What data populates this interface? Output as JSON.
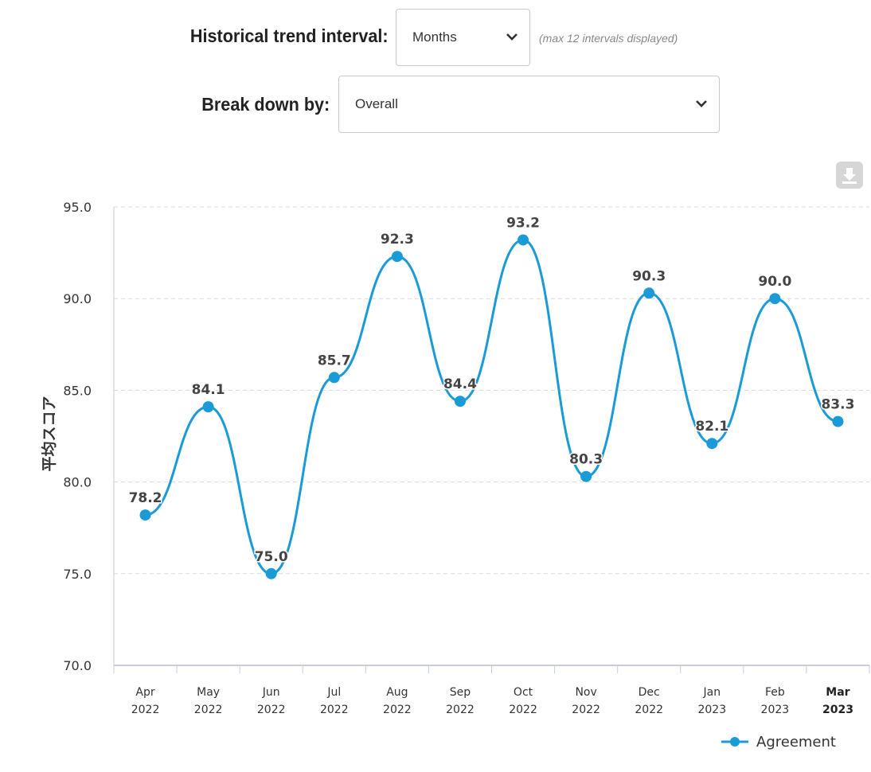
{
  "controls": {
    "interval_label": "Historical trend interval:",
    "interval_value": "Months",
    "interval_hint": "(max 12 intervals displayed)",
    "breakdown_label": "Break down by:",
    "breakdown_value": "Overall"
  },
  "icons": {
    "download": "download-icon",
    "select_arrow": "chevron-down-icon"
  },
  "colors": {
    "series": "#1a9bd7",
    "grid": "#d9d9d9",
    "download_button": "#d6d6d6"
  },
  "chart_data": {
    "type": "line",
    "title": "",
    "xlabel": "",
    "ylabel": "平均スコア",
    "ylim": [
      70,
      95
    ],
    "y_ticks": [
      "70.0",
      "75.0",
      "80.0",
      "85.0",
      "90.0",
      "95.0"
    ],
    "grid": true,
    "legend_position": "bottom-right",
    "smooth": true,
    "categories": [
      [
        "Apr",
        "2022"
      ],
      [
        "May",
        "2022"
      ],
      [
        "Jun",
        "2022"
      ],
      [
        "Jul",
        "2022"
      ],
      [
        "Aug",
        "2022"
      ],
      [
        "Sep",
        "2022"
      ],
      [
        "Oct",
        "2022"
      ],
      [
        "Nov",
        "2022"
      ],
      [
        "Dec",
        "2022"
      ],
      [
        "Jan",
        "2023"
      ],
      [
        "Feb",
        "2023"
      ],
      [
        "Mar",
        "2023"
      ]
    ],
    "highlighted_category": 11,
    "series": [
      {
        "name": "Agreement",
        "values": [
          78.2,
          84.1,
          75.0,
          85.7,
          92.3,
          84.4,
          93.2,
          80.3,
          90.3,
          82.1,
          90.0,
          83.3
        ],
        "labels": [
          "78.2",
          "84.1",
          "75.0",
          "85.7",
          "92.3",
          "84.4",
          "93.2",
          "80.3",
          "90.3",
          "82.1",
          "90.0",
          "83.3"
        ]
      }
    ]
  }
}
